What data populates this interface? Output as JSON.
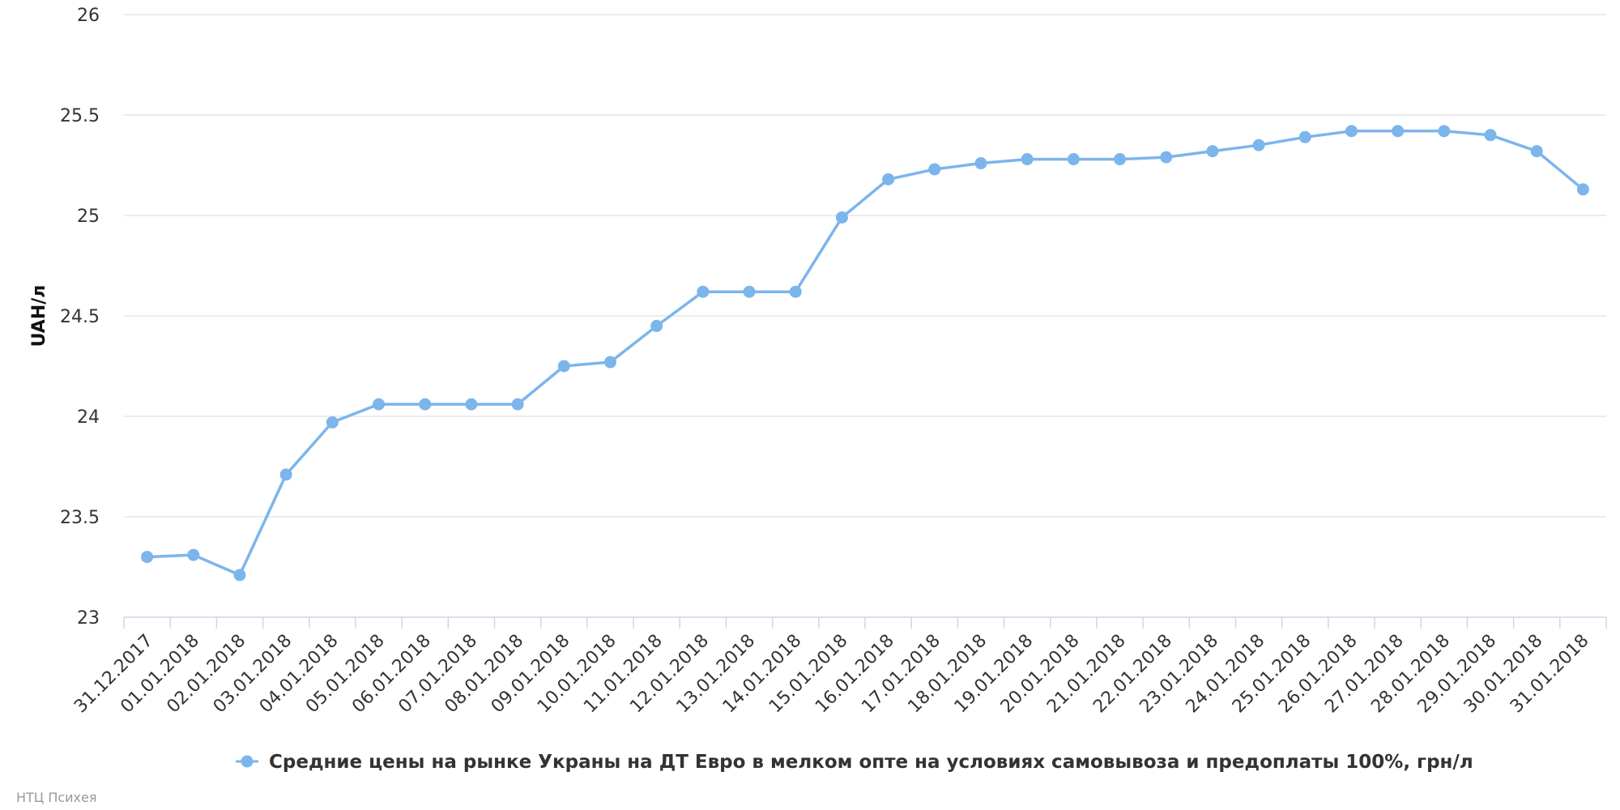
{
  "chart_data": {
    "type": "line",
    "ylabel": "UAH/л",
    "ylim": [
      23,
      26
    ],
    "yticks": [
      "23",
      "23.5",
      "24",
      "24.5",
      "25",
      "25.5",
      "26"
    ],
    "grid": true,
    "legend_position": "bottom-center",
    "categories": [
      "31.12.2017",
      "01.01.2018",
      "02.01.2018",
      "03.01.2018",
      "04.01.2018",
      "05.01.2018",
      "06.01.2018",
      "07.01.2018",
      "08.01.2018",
      "09.01.2018",
      "10.01.2018",
      "11.01.2018",
      "12.01.2018",
      "13.01.2018",
      "14.01.2018",
      "15.01.2018",
      "16.01.2018",
      "17.01.2018",
      "18.01.2018",
      "19.01.2018",
      "20.01.2018",
      "21.01.2018",
      "22.01.2018",
      "23.01.2018",
      "24.01.2018",
      "25.01.2018",
      "26.01.2018",
      "27.01.2018",
      "28.01.2018",
      "29.01.2018",
      "30.01.2018",
      "31.01.2018"
    ],
    "series": [
      {
        "name": "Средние цены на рынке Украны на ДТ Евро в мелком опте на условиях самовывоза и предоплаты 100%, грн/л",
        "color": "#7cb5ec",
        "values": [
          23.3,
          23.31,
          23.21,
          23.71,
          23.97,
          24.06,
          24.06,
          24.06,
          24.06,
          24.25,
          24.27,
          24.45,
          24.62,
          24.62,
          24.62,
          24.99,
          25.18,
          25.23,
          25.26,
          25.28,
          25.28,
          25.28,
          25.29,
          25.32,
          25.35,
          25.39,
          25.42,
          25.42,
          25.42,
          25.4,
          25.32,
          25.13
        ]
      }
    ]
  },
  "credits": "НТЦ Психея"
}
